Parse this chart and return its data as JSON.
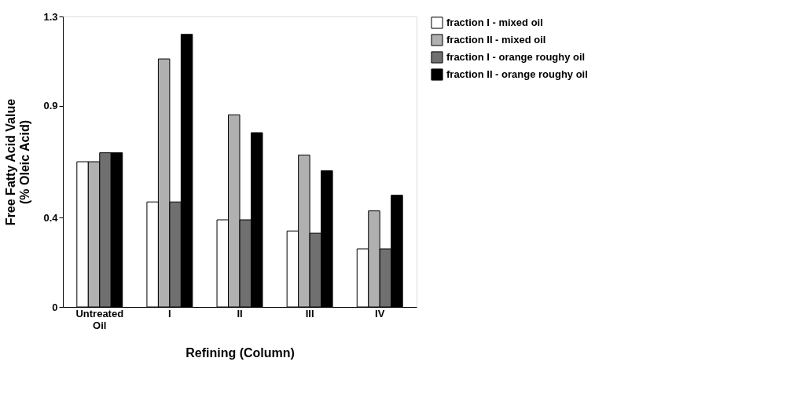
{
  "chart_data": {
    "type": "bar",
    "xlabel": "Refining (Column)",
    "ylabel": "Free Fatty Acid Value\n(% Oleic Acid)",
    "categories": [
      "Untreated\nOil",
      "I",
      "II",
      "III",
      "IV"
    ],
    "series": [
      {
        "name": "fraction I - mixed oil",
        "color": "#ffffff",
        "values": [
          0.65,
          0.47,
          0.39,
          0.34,
          0.26
        ]
      },
      {
        "name": "fraction II - mixed oil",
        "color": "#b0b0b0",
        "values": [
          0.65,
          1.11,
          0.86,
          0.68,
          0.43
        ]
      },
      {
        "name": "fraction I - orange roughy oil",
        "color": "#707070",
        "values": [
          0.69,
          0.47,
          0.39,
          0.33,
          0.26
        ]
      },
      {
        "name": "fraction II - orange roughy oil",
        "color": "#000000",
        "values": [
          0.69,
          1.22,
          0.78,
          0.61,
          0.5
        ]
      }
    ],
    "ylim": [
      0,
      1.3
    ],
    "yticks": [
      0,
      0.4,
      0.9,
      1.3
    ],
    "grid": false,
    "legend": "right"
  }
}
